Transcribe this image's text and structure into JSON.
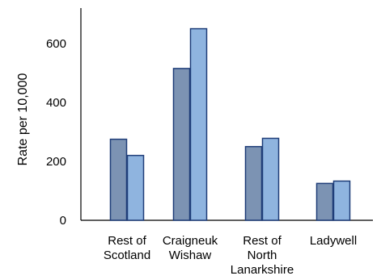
{
  "chart_data": {
    "type": "bar",
    "categories": [
      "Rest of Scotland",
      "Craigneuk Wishaw",
      "Rest of North Lanarkshire",
      "Ladywell"
    ],
    "category_label_lines": [
      [
        "Rest of",
        "Scotland"
      ],
      [
        "Craigneuk",
        "Wishaw"
      ],
      [
        "Rest of",
        "North",
        "Lanarkshire"
      ],
      [
        "Ladywell"
      ]
    ],
    "series": [
      {
        "values": [
          275,
          515,
          250,
          125
        ],
        "color": "#7C93B3"
      },
      {
        "values": [
          220,
          650,
          278,
          133
        ],
        "color": "#8FB4DF"
      }
    ],
    "bar_outline_color": "#1F3D78",
    "axis_color": "#000000",
    "ylabel": "Rate per 10,000",
    "yticks": [
      0,
      200,
      400,
      600
    ],
    "ylim": [
      0,
      720
    ],
    "grid": false,
    "legend": "none"
  }
}
